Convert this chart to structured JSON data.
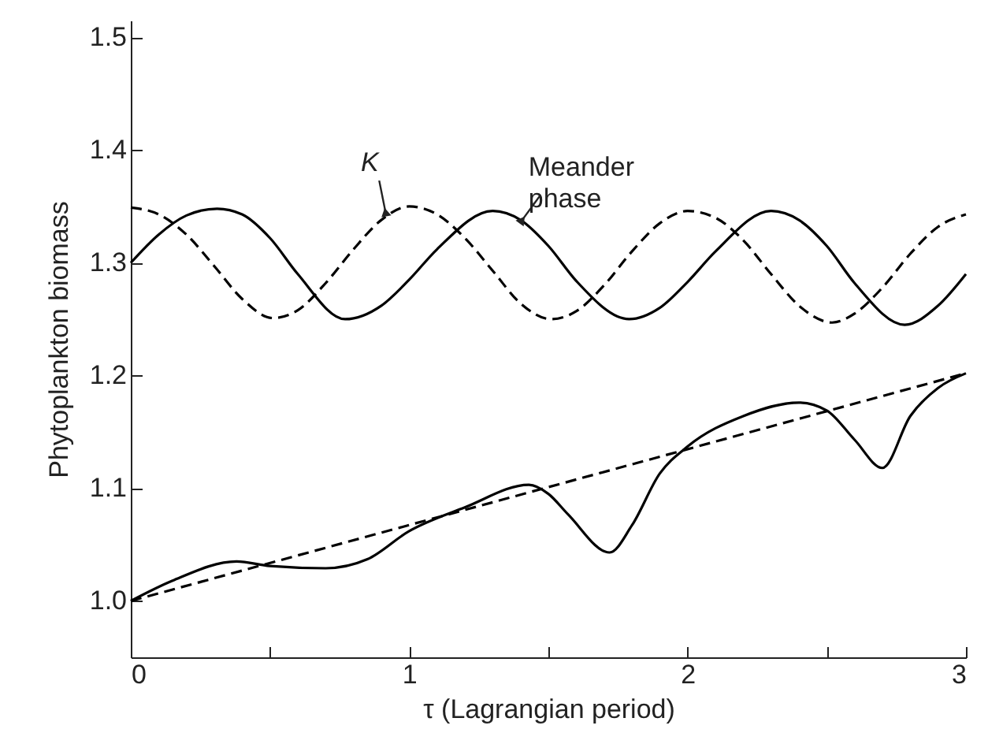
{
  "chart_data": {
    "type": "line",
    "xlabel": "τ (Lagrangian period)",
    "ylabel": "Phytoplankton biomass",
    "xlim": [
      0,
      3
    ],
    "ylim": [
      0.95,
      1.515
    ],
    "xticks": [
      0,
      {
        "value": 0.5,
        "label": null
      },
      1,
      {
        "value": 1.5,
        "label": null
      },
      2,
      {
        "value": 2.5,
        "label": null
      },
      3
    ],
    "yticks": [
      {
        "value": 1,
        "label": "1.0"
      },
      {
        "value": 1.1,
        "label": "1.1"
      },
      {
        "value": 1.2,
        "label": "1.2"
      },
      {
        "value": 1.3,
        "label": "1.3"
      },
      {
        "value": 1.4,
        "label": "1.4"
      },
      {
        "value": 1.5,
        "label": "1.5"
      }
    ],
    "grid": false,
    "marker": "none",
    "series": [
      {
        "color": "#000000",
        "line_style": "solid",
        "x": [
          0,
          0.1,
          0.2,
          0.31,
          0.4,
          0.5,
          0.6,
          0.77,
          0.9,
          1.0,
          1.1,
          1.3,
          1.4,
          1.5,
          1.6,
          1.79,
          1.9,
          2.0,
          2.1,
          2.3,
          2.4,
          2.5,
          2.6,
          2.78,
          2.9,
          3.0
        ],
        "values": [
          1.3,
          1.325,
          1.342,
          1.348,
          1.343,
          1.322,
          1.29,
          1.25,
          1.262,
          1.285,
          1.312,
          1.346,
          1.338,
          1.315,
          1.284,
          1.25,
          1.26,
          1.283,
          1.31,
          1.346,
          1.338,
          1.315,
          1.282,
          1.245,
          1.262,
          1.29
        ]
      },
      {
        "color": "#000000",
        "line_style": "dashed",
        "x": [
          0,
          0.1,
          0.2,
          0.3,
          0.4,
          0.51,
          0.6,
          0.7,
          0.8,
          0.9,
          1.0,
          1.1,
          1.2,
          1.3,
          1.4,
          1.51,
          1.6,
          1.7,
          1.8,
          1.9,
          2.0,
          2.1,
          2.2,
          2.3,
          2.4,
          2.52,
          2.6,
          2.7,
          2.8,
          2.9,
          3.0
        ],
        "values": [
          1.349,
          1.343,
          1.325,
          1.297,
          1.268,
          1.251,
          1.258,
          1.282,
          1.312,
          1.338,
          1.35,
          1.343,
          1.322,
          1.293,
          1.264,
          1.25,
          1.257,
          1.28,
          1.31,
          1.335,
          1.346,
          1.34,
          1.32,
          1.29,
          1.262,
          1.247,
          1.255,
          1.278,
          1.308,
          1.332,
          1.343
        ]
      },
      {
        "color": "#000000",
        "line_style": "solid",
        "x": [
          0,
          0.15,
          0.38,
          0.5,
          0.7,
          0.85,
          1.0,
          1.2,
          1.43,
          1.5,
          1.57,
          1.72,
          1.8,
          1.9,
          2.0,
          2.2,
          2.4,
          2.5,
          2.6,
          2.7,
          2.8,
          2.9,
          3.0
        ],
        "values": [
          1.0,
          1.018,
          1.035,
          1.031,
          1.029,
          1.037,
          1.062,
          1.083,
          1.103,
          1.095,
          1.077,
          1.043,
          1.067,
          1.113,
          1.137,
          1.164,
          1.176,
          1.169,
          1.143,
          1.118,
          1.164,
          1.189,
          1.202
        ]
      },
      {
        "color": "#000000",
        "line_style": "dashed",
        "x": [
          0,
          3
        ],
        "values": [
          1.0,
          1.202
        ]
      }
    ],
    "annotations": [
      {
        "text": "K",
        "x": 0.915,
        "y": 1.345
      },
      {
        "text": "Meander phase",
        "x": 1.406,
        "y": 1.338
      }
    ]
  }
}
